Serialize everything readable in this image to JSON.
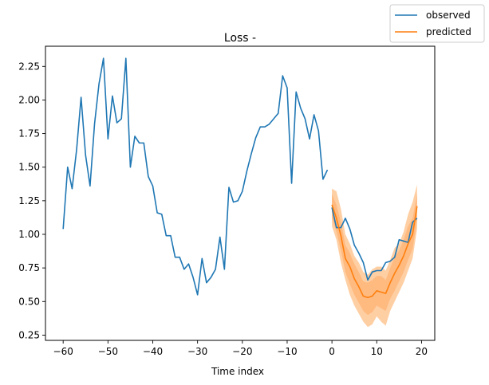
{
  "chart_data": {
    "type": "line",
    "title": "Loss -",
    "xlabel": "Time index",
    "ylabel": "",
    "xlim": [
      -63.95,
      22.95
    ],
    "ylim": [
      0.211,
      2.4
    ],
    "xticks": [
      -60,
      -50,
      -40,
      -30,
      -20,
      -10,
      0,
      10,
      20
    ],
    "xtick_labels": [
      "−60",
      "−50",
      "−40",
      "−30",
      "−20",
      "−10",
      "0",
      "10",
      "20"
    ],
    "yticks": [
      0.25,
      0.5,
      0.75,
      1.0,
      1.25,
      1.5,
      1.75,
      2.0,
      2.25
    ],
    "ytick_labels": [
      "0.25",
      "0.50",
      "0.75",
      "1.00",
      "1.25",
      "1.50",
      "1.75",
      "2.00",
      "2.25"
    ],
    "grid": false,
    "legend_position": "top-right (outside axes)",
    "colors": {
      "observed": "#1f77b4",
      "predicted": "#ff7f0e",
      "band_outer": "#ffbf86",
      "band_inner": "#ffb070"
    },
    "series": [
      {
        "name": "observed",
        "x": [
          -60,
          -59,
          -58,
          -57,
          -56,
          -55,
          -54,
          -53,
          -52,
          -51,
          -50,
          -49,
          -48,
          -47,
          -46,
          -45,
          -44,
          -43,
          -42,
          -41,
          -40,
          -39,
          -38,
          -37,
          -36,
          -35,
          -34,
          -33,
          -32,
          -31,
          -30,
          -29,
          -28,
          -27,
          -26,
          -25,
          -24,
          -23,
          -22,
          -21,
          -20,
          -19,
          -18,
          -17,
          -16,
          -15,
          -14,
          -13,
          -12,
          -11,
          -10,
          -9,
          -8,
          -7,
          -6,
          -5,
          -4,
          -3,
          -2,
          -1
        ],
        "y": [
          1.04,
          1.5,
          1.34,
          1.63,
          2.02,
          1.59,
          1.36,
          1.82,
          2.12,
          2.31,
          1.71,
          2.03,
          1.83,
          1.86,
          2.31,
          1.5,
          1.73,
          1.68,
          1.68,
          1.43,
          1.36,
          1.16,
          1.15,
          0.99,
          0.99,
          0.83,
          0.83,
          0.74,
          0.78,
          0.68,
          0.55,
          0.82,
          0.64,
          0.68,
          0.74,
          0.98,
          0.74,
          1.35,
          1.24,
          1.25,
          1.32,
          1.47,
          1.6,
          1.72,
          1.8,
          1.8,
          1.82,
          1.86,
          1.9,
          2.18,
          2.09,
          1.38,
          2.06,
          1.94,
          1.86,
          1.71,
          1.89,
          1.77,
          1.41,
          1.48
        ]
      },
      {
        "name": "",
        "x": [
          0,
          1,
          2,
          3,
          4,
          5,
          6,
          7,
          8,
          9,
          10,
          11,
          12,
          13,
          14,
          15,
          16,
          17,
          18,
          19
        ],
        "y": [
          1.2,
          1.05,
          1.05,
          1.12,
          1.04,
          0.92,
          0.86,
          0.79,
          0.66,
          0.72,
          0.73,
          0.73,
          0.79,
          0.8,
          0.83,
          0.96,
          0.95,
          0.94,
          1.09,
          1.12
        ]
      },
      {
        "name": "predicted",
        "x": [
          0,
          1,
          2,
          3,
          4,
          5,
          6,
          7,
          8,
          9,
          10,
          11,
          12,
          13,
          14,
          15,
          16,
          17,
          18,
          19
        ],
        "y": [
          1.22,
          1.12,
          0.99,
          0.82,
          0.76,
          0.67,
          0.61,
          0.54,
          0.53,
          0.54,
          0.58,
          0.57,
          0.56,
          0.64,
          0.71,
          0.77,
          0.84,
          0.93,
          1.0,
          1.21
        ],
        "band_outer_low": [
          1.06,
          0.96,
          0.79,
          0.66,
          0.55,
          0.47,
          0.41,
          0.35,
          0.31,
          0.33,
          0.39,
          0.35,
          0.32,
          0.43,
          0.5,
          0.57,
          0.64,
          0.73,
          0.82,
          1.04
        ],
        "band_outer_high": [
          1.34,
          1.32,
          1.19,
          1.0,
          0.93,
          0.84,
          0.79,
          0.72,
          0.7,
          0.74,
          0.76,
          0.76,
          0.73,
          0.81,
          0.9,
          0.93,
          1.02,
          1.15,
          1.24,
          1.37
        ],
        "band_inner_low": [
          1.12,
          1.02,
          0.88,
          0.72,
          0.63,
          0.55,
          0.49,
          0.43,
          0.4,
          0.42,
          0.47,
          0.45,
          0.43,
          0.52,
          0.58,
          0.65,
          0.72,
          0.81,
          0.89,
          1.1
        ],
        "band_inner_high": [
          1.3,
          1.22,
          1.09,
          0.92,
          0.86,
          0.78,
          0.72,
          0.65,
          0.64,
          0.66,
          0.69,
          0.69,
          0.66,
          0.75,
          0.83,
          0.88,
          0.96,
          1.06,
          1.12,
          1.3
        ]
      }
    ]
  }
}
